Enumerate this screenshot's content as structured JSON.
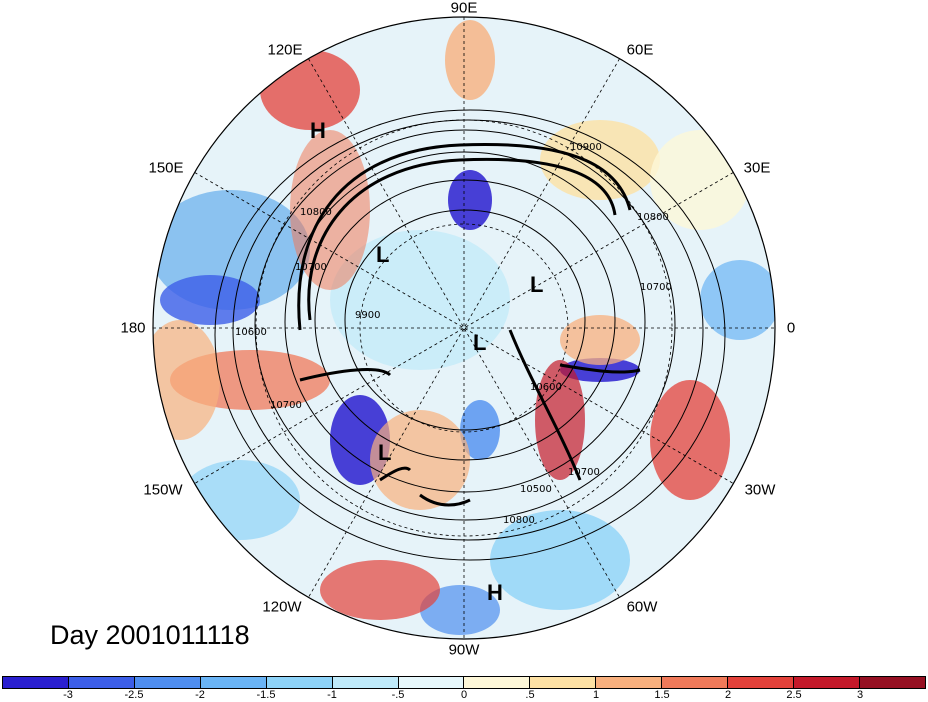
{
  "title": "Day 2001011118",
  "map": {
    "projection": "polar-stereographic-north",
    "longitude_labels": [
      {
        "text": "90E",
        "lon": 90
      },
      {
        "text": "60E",
        "lon": 60
      },
      {
        "text": "30E",
        "lon": 30
      },
      {
        "text": "0",
        "lon": 0
      },
      {
        "text": "30W",
        "lon": -30
      },
      {
        "text": "60W",
        "lon": -60
      },
      {
        "text": "90W",
        "lon": -90
      },
      {
        "text": "120W",
        "lon": -120
      },
      {
        "text": "150W",
        "lon": -150
      },
      {
        "text": "180",
        "lon": 180
      },
      {
        "text": "150E",
        "lon": 150
      },
      {
        "text": "120E",
        "lon": 120
      }
    ],
    "contour_labels": [
      "10900",
      "10800",
      "10700",
      "10800",
      "10600",
      "10700",
      "10700",
      "10600",
      "10500",
      "10800",
      "10700",
      "9900"
    ],
    "pressure_centers": [
      {
        "type": "H",
        "region": "East Asia"
      },
      {
        "type": "L",
        "region": "Siberia"
      },
      {
        "type": "L",
        "region": "Barents Sea"
      },
      {
        "type": "L",
        "region": "Arctic"
      },
      {
        "type": "L",
        "region": "Alaska"
      },
      {
        "type": "H",
        "region": "Tropical America"
      }
    ]
  },
  "colorbar": {
    "colors": [
      "#2a1fd0",
      "#3c5ee8",
      "#4f8ef0",
      "#6ab4f5",
      "#8ed3f8",
      "#bfeafa",
      "#e6f7fb",
      "#fdf7d8",
      "#fde1a4",
      "#f8b07e",
      "#f07a5a",
      "#e3413a",
      "#c4192a",
      "#961022"
    ],
    "tick_labels": [
      "-3",
      "-2.5",
      "-2",
      "-1.5",
      "-1",
      "-.5",
      "0",
      ".5",
      "1",
      "1.5",
      "2",
      "2.5",
      "3"
    ]
  }
}
